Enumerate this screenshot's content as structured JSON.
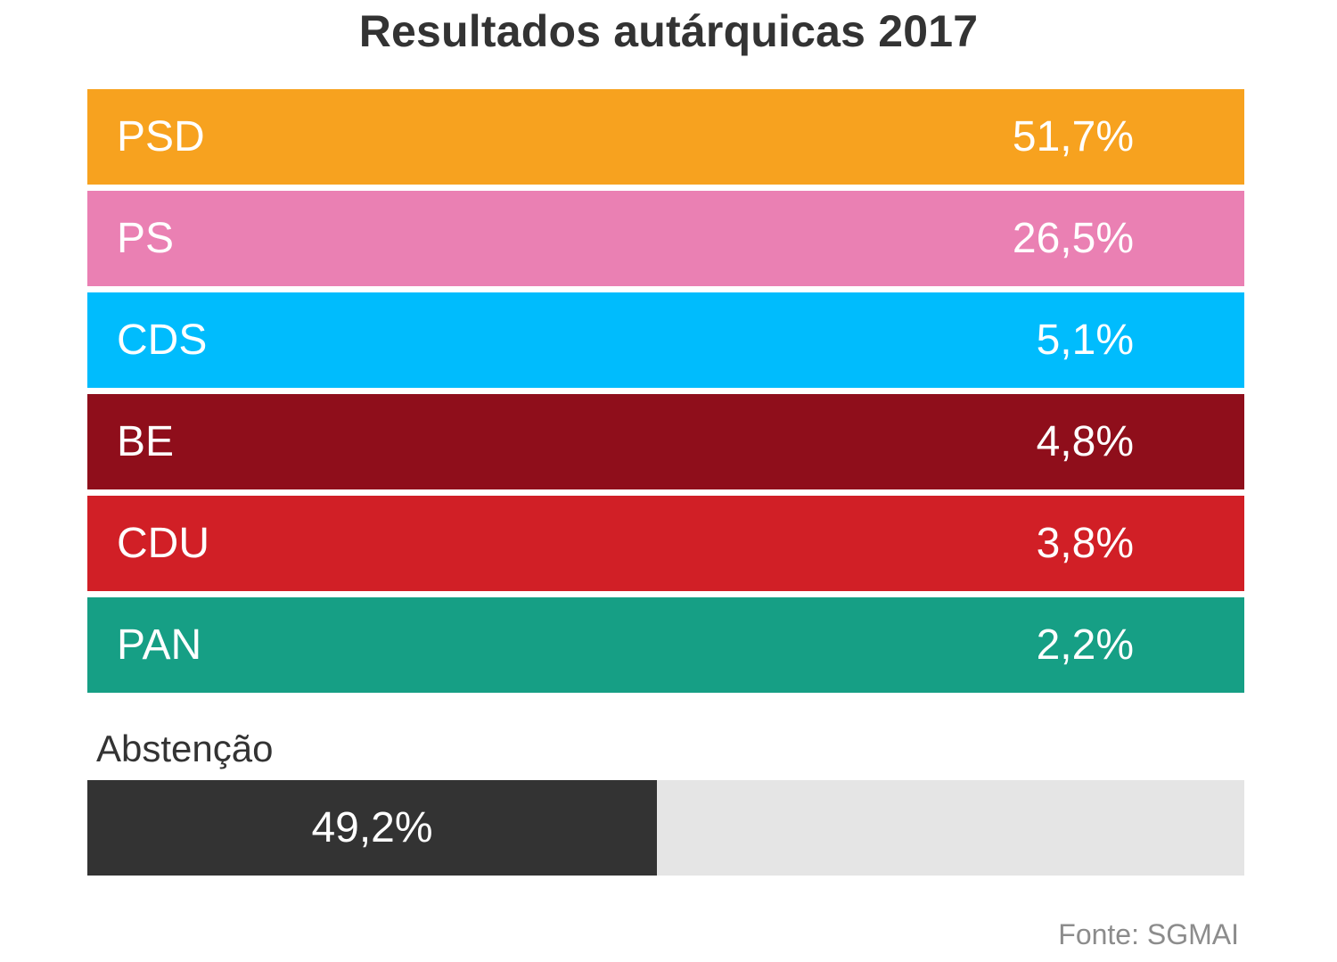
{
  "chart_data": {
    "type": "table",
    "title": "Resultados autárquicas 2017",
    "unit": "%",
    "parties": [
      {
        "name": "PSD",
        "value": 51.7,
        "label": "51,7%",
        "color": "#F7A21F"
      },
      {
        "name": "PS",
        "value": 26.5,
        "label": "26,5%",
        "color": "#EA80B3"
      },
      {
        "name": "CDS",
        "value": 5.1,
        "label": "5,1%",
        "color": "#00BCFD"
      },
      {
        "name": "BE",
        "value": 4.8,
        "label": "4,8%",
        "color": "#8F0E1B"
      },
      {
        "name": "CDU",
        "value": 3.8,
        "label": "3,8%",
        "color": "#D11F26"
      },
      {
        "name": "PAN",
        "value": 2.2,
        "label": "2,2%",
        "color": "#169F85"
      }
    ],
    "abstention": {
      "title": "Abstenção",
      "value": 49.2,
      "label": "49,2%",
      "range": [
        0,
        100
      ],
      "color": "#333333",
      "track_color": "#E5E5E5"
    }
  },
  "source": "Fonte: SGMAI"
}
